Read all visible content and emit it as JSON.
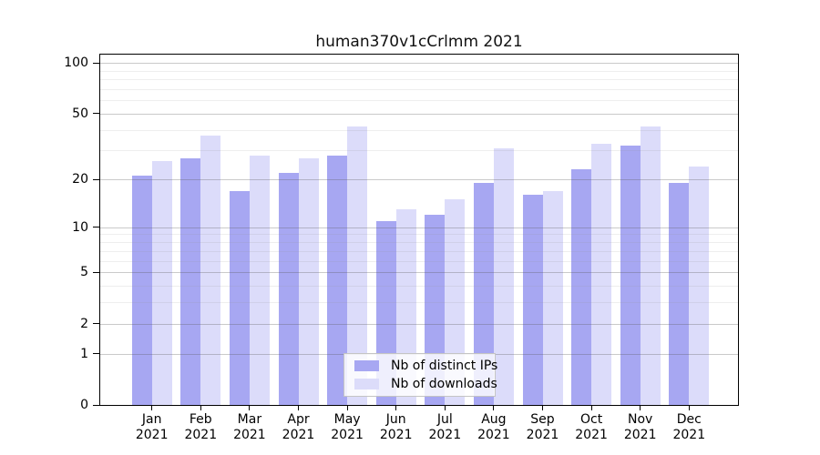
{
  "title": "human370v1cCrlmm 2021",
  "chart_data": {
    "type": "bar",
    "title": "human370v1cCrlmm 2021",
    "scale": "log1p",
    "grid": true,
    "xlabel": "",
    "ylabel": "",
    "ylim": [
      0,
      112
    ],
    "y_ticks": [
      0,
      1,
      2,
      5,
      10,
      20,
      50,
      100
    ],
    "minor_gridlines": [
      1,
      2,
      3,
      4,
      5,
      6,
      7,
      8,
      9,
      10,
      20,
      30,
      40,
      50,
      60,
      70,
      80,
      90,
      100
    ],
    "categories": [
      "Jan 2021",
      "Feb 2021",
      "Mar 2021",
      "Apr 2021",
      "May 2021",
      "Jun 2021",
      "Jul 2021",
      "Aug 2021",
      "Sep 2021",
      "Oct 2021",
      "Nov 2021",
      "Dec 2021"
    ],
    "series": [
      {
        "name": "Nb of distinct IPs",
        "color": "#a7a7f2",
        "values": [
          21,
          27,
          17,
          22,
          28,
          11,
          12,
          19,
          16,
          23,
          32,
          19
        ]
      },
      {
        "name": "Nb of downloads",
        "color": "#dcdcfa",
        "values": [
          26,
          37,
          28,
          27,
          42,
          13,
          15,
          31,
          17,
          33,
          42,
          24
        ]
      }
    ],
    "legend_position": "bottom-center-inside"
  },
  "legend": {
    "items": [
      {
        "label": "Nb of distinct IPs",
        "swatch_color": "#a7a7f2"
      },
      {
        "label": "Nb of downloads",
        "swatch_color": "#dcdcfa"
      }
    ]
  }
}
